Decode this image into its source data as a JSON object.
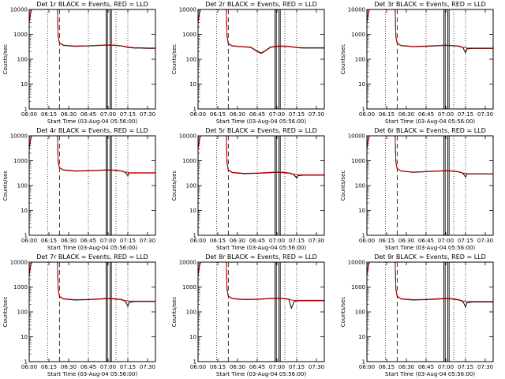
{
  "chart_data": {
    "type": "line",
    "ylabel": "Counts/sec",
    "xlabel": "Start Time (03-Aug-04 05:56:00)",
    "x_tick_labels": [
      "06:00",
      "06:15",
      "06:30",
      "06:45",
      "07:00",
      "07:15",
      "07:30"
    ],
    "x_tick_minutes": [
      0,
      15,
      30,
      45,
      60,
      75,
      90
    ],
    "xlim_minutes": [
      0,
      96
    ],
    "y_tick_labels": [
      "1",
      "10",
      "100",
      "1000",
      "10000"
    ],
    "ylim": [
      1,
      10000
    ],
    "yscale": "log",
    "legend_text": "BLACK = Events, RED = LLD",
    "dotted_markers_minutes": [
      -1,
      14,
      45,
      66,
      75
    ],
    "dashed_markers_minutes": [
      23
    ],
    "solid_markers_minutes": [
      58.5,
      59.5,
      61.5,
      62.5
    ],
    "panels": [
      {
        "title": "Det 1r  BLACK = Events, RED = LLD",
        "series": [
          {
            "name": "Events",
            "color": "#000000",
            "x": [
              0,
              1,
              2,
              2.5,
              21.5,
              22,
              23,
              26,
              35,
              45,
              55,
              60,
              65,
              70,
              75,
              80,
              85,
              90,
              96
            ],
            "y": [
              3000,
              7000,
              10000,
              10000,
              10000,
              800,
              450,
              360,
              330,
              340,
              360,
              370,
              360,
              340,
              300,
              280,
              280,
              275,
              275
            ]
          },
          {
            "name": "LLD",
            "color": "#cc0000",
            "x": [
              0,
              1,
              2,
              2.5,
              21.5,
              22,
              23,
              26,
              35,
              45,
              55,
              60,
              65,
              70,
              75,
              80,
              85,
              90,
              96
            ],
            "y": [
              3000,
              7000,
              10000,
              10000,
              10000,
              820,
              460,
              370,
              340,
              350,
              370,
              380,
              370,
              350,
              310,
              290,
              290,
              285,
              285
            ]
          }
        ]
      },
      {
        "title": "Det 2r  BLACK = Events, RED = LLD",
        "series": [
          {
            "name": "Events",
            "color": "#000000",
            "x": [
              0,
              1,
              2,
              2.5,
              21.5,
              22,
              23,
              26,
              35,
              40,
              44,
              48,
              52,
              55,
              60,
              65,
              70,
              75,
              80,
              85,
              90,
              96
            ],
            "y": [
              3000,
              7000,
              10000,
              10000,
              10000,
              800,
              420,
              340,
              310,
              300,
              220,
              170,
              230,
              300,
              330,
              330,
              320,
              290,
              280,
              280,
              280,
              280
            ]
          },
          {
            "name": "LLD",
            "color": "#cc0000",
            "x": [
              0,
              1,
              2,
              2.5,
              21.5,
              22,
              23,
              26,
              35,
              40,
              44,
              48,
              52,
              55,
              60,
              65,
              70,
              75,
              80,
              85,
              90,
              96
            ],
            "y": [
              3000,
              7000,
              10000,
              10000,
              10000,
              820,
              430,
              350,
              320,
              310,
              230,
              180,
              240,
              310,
              340,
              340,
              330,
              300,
              290,
              290,
              290,
              290
            ]
          }
        ]
      },
      {
        "title": "Det 3r  BLACK = Events, RED = LLD",
        "series": [
          {
            "name": "Events",
            "color": "#000000",
            "x": [
              0,
              1,
              2,
              2.5,
              21.5,
              22,
              23,
              26,
              35,
              45,
              55,
              60,
              65,
              70,
              73,
              75,
              76,
              80,
              85,
              90,
              96
            ],
            "y": [
              3000,
              7000,
              10000,
              10000,
              10000,
              800,
              440,
              350,
              320,
              330,
              350,
              360,
              350,
              330,
              290,
              180,
              260,
              270,
              270,
              270,
              270
            ]
          },
          {
            "name": "LLD",
            "color": "#cc0000",
            "x": [
              0,
              1,
              2,
              2.5,
              21.5,
              22,
              23,
              26,
              35,
              45,
              55,
              60,
              65,
              70,
              73,
              75,
              76,
              80,
              85,
              90,
              96
            ],
            "y": [
              3000,
              7000,
              10000,
              10000,
              10000,
              820,
              450,
              360,
              330,
              340,
              360,
              370,
              360,
              340,
              300,
              300,
              280,
              280,
              280,
              280,
              280
            ]
          }
        ]
      },
      {
        "title": "Det 4r  BLACK = Events, RED = LLD",
        "series": [
          {
            "name": "Events",
            "color": "#000000",
            "x": [
              0,
              1,
              2,
              2.5,
              21.5,
              22,
              23,
              26,
              35,
              45,
              55,
              60,
              65,
              70,
              73,
              75,
              76,
              80,
              85,
              90,
              96
            ],
            "y": [
              3000,
              7000,
              10000,
              10000,
              10000,
              900,
              520,
              420,
              380,
              390,
              410,
              420,
              410,
              380,
              340,
              250,
              320,
              320,
              320,
              320,
              320
            ]
          },
          {
            "name": "LLD",
            "color": "#cc0000",
            "x": [
              0,
              1,
              2,
              2.5,
              21.5,
              22,
              23,
              26,
              35,
              45,
              55,
              60,
              65,
              70,
              73,
              75,
              76,
              80,
              85,
              90,
              96
            ],
            "y": [
              3000,
              7000,
              10000,
              10000,
              10000,
              920,
              530,
              430,
              390,
              400,
              420,
              430,
              420,
              390,
              350,
              340,
              330,
              330,
              330,
              330,
              330
            ]
          }
        ]
      },
      {
        "title": "Det 5r  BLACK = Events, RED = LLD",
        "series": [
          {
            "name": "Events",
            "color": "#000000",
            "x": [
              0,
              1,
              2,
              2.5,
              21.5,
              22,
              23,
              26,
              35,
              45,
              55,
              60,
              65,
              70,
              73,
              75,
              76,
              80,
              85,
              90,
              96
            ],
            "y": [
              3000,
              7000,
              10000,
              10000,
              10000,
              800,
              420,
              330,
              300,
              310,
              330,
              340,
              330,
              310,
              270,
              200,
              250,
              260,
              260,
              260,
              260
            ]
          },
          {
            "name": "LLD",
            "color": "#cc0000",
            "x": [
              0,
              1,
              2,
              2.5,
              21.5,
              22,
              23,
              26,
              35,
              45,
              55,
              60,
              65,
              70,
              73,
              75,
              76,
              80,
              85,
              90,
              96
            ],
            "y": [
              3000,
              7000,
              10000,
              10000,
              10000,
              820,
              430,
              340,
              310,
              320,
              340,
              350,
              340,
              320,
              280,
              280,
              270,
              270,
              270,
              270,
              270
            ]
          }
        ]
      },
      {
        "title": "Det 6r  BLACK = Events, RED = LLD",
        "series": [
          {
            "name": "Events",
            "color": "#000000",
            "x": [
              0,
              1,
              2,
              2.5,
              21.5,
              22,
              23,
              26,
              35,
              45,
              55,
              60,
              65,
              70,
              73,
              75,
              76,
              80,
              85,
              90,
              96
            ],
            "y": [
              3000,
              7000,
              10000,
              10000,
              10000,
              850,
              480,
              380,
              340,
              360,
              380,
              390,
              380,
              350,
              310,
              220,
              290,
              290,
              290,
              290,
              290
            ]
          },
          {
            "name": "LLD",
            "color": "#cc0000",
            "x": [
              0,
              1,
              2,
              2.5,
              21.5,
              22,
              23,
              26,
              35,
              45,
              55,
              60,
              65,
              70,
              73,
              75,
              76,
              80,
              85,
              90,
              96
            ],
            "y": [
              3000,
              7000,
              10000,
              10000,
              10000,
              870,
              490,
              390,
              350,
              370,
              390,
              400,
              390,
              360,
              320,
              310,
              300,
              300,
              300,
              300,
              300
            ]
          }
        ]
      },
      {
        "title": "Det 7r  BLACK = Events, RED = LLD",
        "series": [
          {
            "name": "Events",
            "color": "#000000",
            "x": [
              0,
              1,
              2,
              2.5,
              21.5,
              22,
              23,
              26,
              35,
              45,
              55,
              60,
              65,
              70,
              73,
              75,
              76,
              80,
              85,
              90,
              96
            ],
            "y": [
              3000,
              7000,
              10000,
              10000,
              10000,
              800,
              420,
              330,
              300,
              310,
              330,
              340,
              330,
              310,
              270,
              170,
              240,
              260,
              260,
              260,
              260
            ]
          },
          {
            "name": "LLD",
            "color": "#cc0000",
            "x": [
              0,
              1,
              2,
              2.5,
              21.5,
              22,
              23,
              26,
              35,
              45,
              55,
              60,
              65,
              70,
              73,
              75,
              76,
              80,
              85,
              90,
              96
            ],
            "y": [
              3000,
              7000,
              10000,
              10000,
              10000,
              820,
              430,
              340,
              310,
              320,
              340,
              350,
              340,
              320,
              280,
              280,
              270,
              270,
              270,
              270,
              270
            ]
          }
        ]
      },
      {
        "title": "Det 8r  BLACK = Events, RED = LLD",
        "series": [
          {
            "name": "Events",
            "color": "#000000",
            "x": [
              0,
              1,
              2,
              2.5,
              21.5,
              22,
              23,
              26,
              35,
              45,
              55,
              60,
              65,
              69,
              71,
              73,
              76,
              80,
              85,
              90,
              96
            ],
            "y": [
              3000,
              7000,
              10000,
              10000,
              10000,
              800,
              430,
              340,
              310,
              320,
              340,
              350,
              340,
              320,
              140,
              260,
              280,
              280,
              280,
              280,
              280
            ]
          },
          {
            "name": "LLD",
            "color": "#cc0000",
            "x": [
              0,
              1,
              2,
              2.5,
              21.5,
              22,
              23,
              26,
              35,
              45,
              55,
              60,
              65,
              69,
              71,
              73,
              76,
              80,
              85,
              90,
              96
            ],
            "y": [
              3000,
              7000,
              10000,
              10000,
              10000,
              820,
              440,
              350,
              320,
              330,
              350,
              360,
              350,
              330,
              300,
              290,
              290,
              290,
              290,
              290,
              290
            ]
          }
        ]
      },
      {
        "title": "Det 9r  BLACK = Events, RED = LLD",
        "series": [
          {
            "name": "Events",
            "color": "#000000",
            "x": [
              0,
              1,
              2,
              2.5,
              21.5,
              22,
              23,
              26,
              35,
              45,
              55,
              60,
              65,
              70,
              73,
              75,
              76,
              80,
              85,
              90,
              96
            ],
            "y": [
              3000,
              7000,
              10000,
              10000,
              10000,
              800,
              420,
              330,
              300,
              310,
              330,
              340,
              330,
              300,
              260,
              160,
              230,
              250,
              250,
              250,
              250
            ]
          },
          {
            "name": "LLD",
            "color": "#cc0000",
            "x": [
              0,
              1,
              2,
              2.5,
              21.5,
              22,
              23,
              26,
              35,
              45,
              55,
              60,
              65,
              70,
              73,
              75,
              76,
              80,
              85,
              90,
              96
            ],
            "y": [
              3000,
              7000,
              10000,
              10000,
              10000,
              820,
              430,
              340,
              310,
              320,
              340,
              350,
              340,
              310,
              270,
              270,
              260,
              260,
              260,
              260,
              260
            ]
          }
        ]
      }
    ]
  }
}
